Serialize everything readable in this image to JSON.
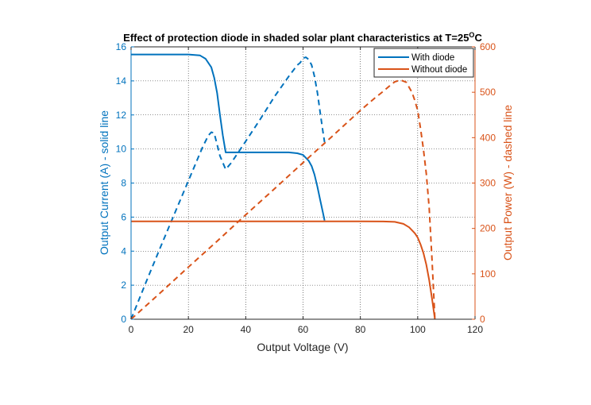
{
  "chart_data": {
    "type": "line",
    "title": "Effect of protection diode in shaded solar plant characteristics at T=25",
    "title_superscript": "O",
    "title_suffix": "C",
    "xlabel": "Output Voltage (V)",
    "ylabel_left": "Output Current (A) - solid line",
    "ylabel_right": "Output Power (W) - dashed line",
    "xlim": [
      0,
      120
    ],
    "ylim_left": [
      0,
      16
    ],
    "ylim_right": [
      0,
      600
    ],
    "x_ticks": [
      0,
      20,
      40,
      60,
      80,
      100,
      120
    ],
    "y_left_ticks": [
      0,
      2,
      4,
      6,
      8,
      10,
      12,
      14,
      16
    ],
    "y_right_ticks": [
      0,
      100,
      200,
      300,
      400,
      500,
      600
    ],
    "grid": "dotted",
    "colors": {
      "with_diode": "#0072BD",
      "without_diode": "#D95319",
      "axes": "#262626"
    },
    "legend": {
      "position": "top-right",
      "entries": [
        "With diode",
        "Without diode"
      ]
    },
    "series": [
      {
        "name": "With diode",
        "axis": "left",
        "style": "solid",
        "x": [
          0,
          10,
          20,
          24,
          26,
          28,
          29,
          30,
          31,
          32,
          33,
          40,
          50,
          55,
          58,
          60,
          62,
          63,
          64,
          65,
          66,
          67,
          67.5
        ],
        "y": [
          15.55,
          15.55,
          15.55,
          15.5,
          15.3,
          14.8,
          14.2,
          13.3,
          12.0,
          10.8,
          9.8,
          9.8,
          9.8,
          9.8,
          9.75,
          9.65,
          9.3,
          9.0,
          8.5,
          7.8,
          7.0,
          6.2,
          5.8
        ]
      },
      {
        "name": "With diode (power)",
        "axis": "right",
        "style": "dashed",
        "x": [
          0,
          5,
          10,
          15,
          20,
          25,
          27,
          28,
          29,
          30,
          31,
          32,
          33,
          35,
          40,
          45,
          50,
          55,
          58,
          59,
          60,
          61,
          62,
          63,
          64,
          65,
          66,
          67,
          67.5
        ],
        "y": [
          0,
          78,
          155,
          230,
          305,
          380,
          405,
          412,
          410,
          385,
          360,
          345,
          330,
          345,
          392,
          440,
          490,
          535,
          560,
          565,
          575,
          577,
          572,
          560,
          535,
          500,
          455,
          410,
          390
        ]
      },
      {
        "name": "Without diode",
        "axis": "left",
        "style": "solid",
        "x": [
          0,
          20,
          40,
          60,
          80,
          88,
          92,
          95,
          97,
          99,
          100,
          101,
          102,
          103,
          104,
          105,
          106
        ],
        "y": [
          5.75,
          5.75,
          5.75,
          5.75,
          5.75,
          5.74,
          5.72,
          5.6,
          5.4,
          5.05,
          4.8,
          4.4,
          3.9,
          3.2,
          2.3,
          1.2,
          0
        ]
      },
      {
        "name": "Without diode (power)",
        "axis": "right",
        "style": "dashed",
        "x": [
          0,
          10,
          20,
          30,
          40,
          50,
          60,
          70,
          80,
          85,
          88,
          90,
          92,
          94,
          96,
          98,
          99,
          100,
          101,
          102,
          103,
          104,
          105,
          106
        ],
        "y": [
          0,
          57,
          115,
          172,
          230,
          287,
          345,
          402,
          460,
          487,
          502,
          513,
          523,
          527,
          522,
          500,
          482,
          460,
          420,
          375,
          320,
          245,
          130,
          0
        ]
      }
    ]
  }
}
